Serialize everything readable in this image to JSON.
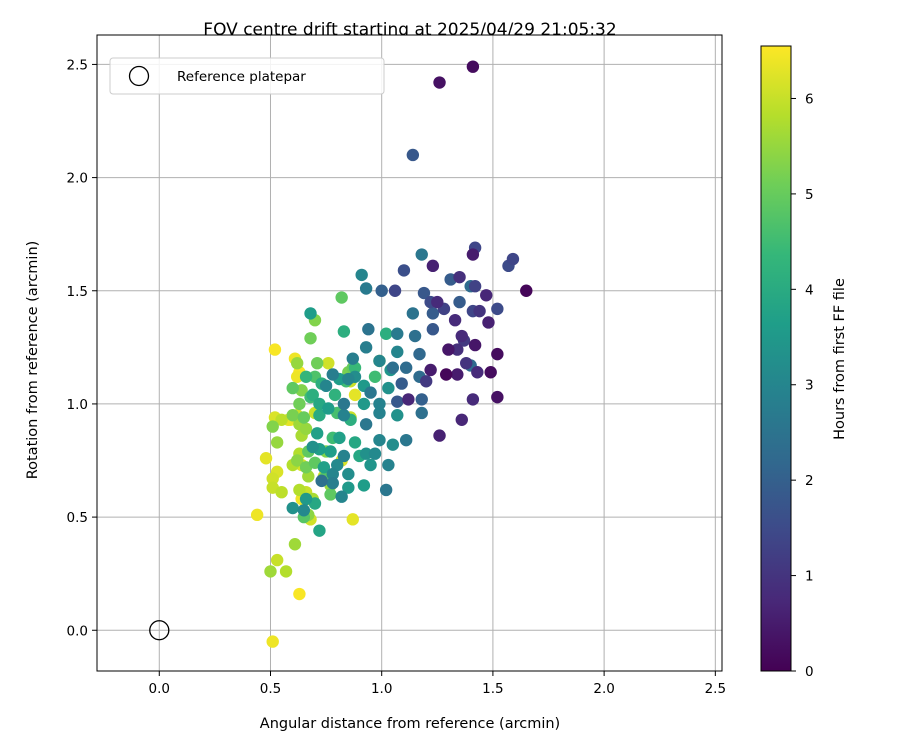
{
  "chart_data": {
    "type": "scatter",
    "title": "FOV centre drift starting at 2025/04/29 21:05:32",
    "xlabel": "Angular distance from reference (arcmin)",
    "ylabel": "Rotation from reference (arcmin)",
    "xlim": [
      -0.28,
      2.53
    ],
    "ylim": [
      -0.18,
      2.63
    ],
    "x_ticks": [
      "0.0",
      "0.5",
      "1.0",
      "1.5",
      "2.0",
      "2.5"
    ],
    "y_ticks": [
      "0.0",
      "0.5",
      "1.0",
      "1.5",
      "2.0",
      "2.5"
    ],
    "grid": true,
    "legend": {
      "placement": "top-left",
      "entries": [
        "Reference platepar"
      ]
    },
    "colorbar": {
      "label": "Hours from first FF file",
      "range": [
        0,
        6.55
      ],
      "ticks": [
        "0",
        "1",
        "2",
        "3",
        "4",
        "5",
        "6"
      ],
      "colormap": [
        "#440154",
        "#482878",
        "#3e4989",
        "#31688e",
        "#26828e",
        "#1f9e89",
        "#35b779",
        "#6ece58",
        "#b5de2b",
        "#fde725"
      ]
    },
    "reference_point": {
      "x": 0.0,
      "y": 0.0
    },
    "series": [
      {
        "points": [
          [
            1.41,
            2.49,
            0.2
          ],
          [
            1.26,
            2.42,
            0.3
          ],
          [
            1.14,
            2.1,
            1.8
          ],
          [
            1.41,
            1.66,
            0.5
          ],
          [
            1.42,
            1.69,
            1.4
          ],
          [
            1.59,
            1.64,
            1.4
          ],
          [
            1.57,
            1.61,
            1.5
          ],
          [
            1.52,
            1.42,
            1.5
          ],
          [
            1.65,
            1.5,
            0.1
          ],
          [
            1.47,
            1.48,
            0.7
          ],
          [
            1.35,
            1.56,
            0.9
          ],
          [
            1.31,
            1.55,
            1.9
          ],
          [
            1.23,
            1.61,
            0.6
          ],
          [
            1.18,
            1.66,
            2.6
          ],
          [
            1.1,
            1.59,
            1.6
          ],
          [
            1.06,
            1.5,
            1.4
          ],
          [
            1.0,
            1.5,
            2.0
          ],
          [
            0.93,
            1.51,
            2.7
          ],
          [
            0.91,
            1.57,
            3.0
          ],
          [
            1.19,
            1.49,
            1.8
          ],
          [
            1.22,
            1.45,
            1.5
          ],
          [
            1.25,
            1.45,
            0.8
          ],
          [
            1.28,
            1.42,
            1.3
          ],
          [
            1.33,
            1.37,
            0.8
          ],
          [
            1.35,
            1.45,
            1.9
          ],
          [
            1.4,
            1.52,
            2.3
          ],
          [
            1.42,
            1.52,
            1.3
          ],
          [
            1.41,
            1.41,
            1.4
          ],
          [
            1.48,
            1.36,
            0.6
          ],
          [
            1.44,
            1.41,
            1.0
          ],
          [
            1.36,
            1.3,
            0.8
          ],
          [
            1.37,
            1.28,
            1.1
          ],
          [
            1.34,
            1.24,
            0.9
          ],
          [
            1.3,
            1.24,
            0.4
          ],
          [
            1.42,
            1.26,
            0.4
          ],
          [
            1.52,
            1.22,
            0.2
          ],
          [
            1.38,
            1.18,
            1.0
          ],
          [
            1.4,
            1.17,
            2.3
          ],
          [
            1.43,
            1.14,
            0.8
          ],
          [
            1.49,
            1.14,
            0.2
          ],
          [
            1.52,
            1.03,
            0.3
          ],
          [
            1.41,
            1.02,
            0.8
          ],
          [
            1.36,
            0.93,
            0.7
          ],
          [
            1.26,
            0.86,
            0.6
          ],
          [
            1.29,
            1.13,
            0.1
          ],
          [
            1.34,
            1.13,
            0.5
          ],
          [
            1.22,
            1.15,
            0.5
          ],
          [
            1.2,
            1.1,
            1.1
          ],
          [
            1.17,
            1.12,
            2.3
          ],
          [
            1.23,
            1.33,
            1.8
          ],
          [
            1.23,
            1.4,
            1.9
          ],
          [
            1.17,
            1.22,
            2.2
          ],
          [
            1.15,
            1.3,
            2.4
          ],
          [
            1.14,
            1.4,
            2.5
          ],
          [
            1.07,
            1.31,
            2.7
          ],
          [
            1.02,
            1.31,
            4.1
          ],
          [
            1.07,
            1.23,
            3.0
          ],
          [
            1.05,
            1.16,
            2.4
          ],
          [
            1.11,
            1.16,
            2.3
          ],
          [
            1.09,
            1.09,
            1.9
          ],
          [
            1.18,
            1.02,
            2.0
          ],
          [
            1.18,
            0.96,
            2.4
          ],
          [
            1.12,
            1.02,
            0.7
          ],
          [
            1.07,
            1.01,
            1.8
          ],
          [
            1.03,
            1.07,
            3.3
          ],
          [
            1.04,
            1.15,
            3.4
          ],
          [
            0.99,
            1.19,
            3.0
          ],
          [
            0.97,
            1.12,
            4.5
          ],
          [
            0.93,
            1.25,
            2.8
          ],
          [
            0.94,
            1.33,
            2.5
          ],
          [
            0.87,
            1.2,
            2.8
          ],
          [
            0.88,
            1.12,
            3.2
          ],
          [
            0.92,
            1.08,
            3.5
          ],
          [
            0.95,
            1.05,
            2.6
          ],
          [
            0.99,
            1.0,
            2.9
          ],
          [
            0.99,
            0.96,
            2.9
          ],
          [
            0.99,
            0.84,
            3.0
          ],
          [
            1.05,
            0.82,
            3.2
          ],
          [
            1.11,
            0.84,
            2.6
          ],
          [
            1.07,
            0.95,
            3.3
          ],
          [
            1.03,
            0.73,
            2.9
          ],
          [
            1.02,
            0.62,
            2.6
          ],
          [
            0.97,
            0.78,
            3.1
          ],
          [
            0.95,
            0.73,
            3.4
          ],
          [
            0.93,
            0.78,
            3.3
          ],
          [
            0.9,
            0.77,
            3.9
          ],
          [
            0.92,
            0.64,
            3.6
          ],
          [
            0.93,
            0.91,
            2.6
          ],
          [
            0.92,
            1.0,
            3.5
          ],
          [
            0.86,
            0.93,
            4.1
          ],
          [
            0.88,
            0.83,
            3.9
          ],
          [
            0.83,
            0.77,
            2.9
          ],
          [
            0.8,
            0.73,
            3.1
          ],
          [
            0.85,
            0.69,
            3.2
          ],
          [
            0.85,
            0.63,
            3.5
          ],
          [
            0.82,
            0.59,
            3.0
          ],
          [
            0.78,
            0.65,
            2.8
          ],
          [
            0.73,
            0.66,
            2.4
          ],
          [
            0.78,
            0.69,
            3.0
          ],
          [
            0.74,
            0.72,
            3.7
          ],
          [
            0.77,
            0.79,
            3.6
          ],
          [
            0.81,
            0.85,
            3.7
          ],
          [
            0.83,
            0.95,
            2.9
          ],
          [
            0.83,
            1.0,
            2.6
          ],
          [
            0.85,
            1.11,
            3.0
          ],
          [
            0.81,
            1.11,
            3.6
          ],
          [
            0.78,
            1.13,
            2.8
          ],
          [
            0.75,
            1.08,
            3.0
          ],
          [
            0.79,
            1.04,
            4.2
          ],
          [
            0.76,
            0.98,
            3.6
          ],
          [
            0.72,
            0.95,
            4.0
          ],
          [
            0.72,
            1.0,
            3.9
          ],
          [
            0.69,
            1.04,
            4.1
          ],
          [
            0.73,
            1.09,
            4.1
          ],
          [
            0.71,
            0.87,
            3.7
          ],
          [
            0.69,
            0.81,
            3.3
          ],
          [
            0.72,
            0.8,
            3.6
          ],
          [
            0.74,
            0.67,
            4.8
          ],
          [
            0.7,
            0.56,
            3.9
          ],
          [
            0.66,
            0.58,
            3.5
          ],
          [
            0.65,
            0.53,
            3.1
          ],
          [
            0.6,
            0.54,
            3.3
          ],
          [
            0.65,
            0.5,
            4.8
          ],
          [
            0.72,
            0.44,
            3.8
          ],
          [
            0.77,
            0.6,
            4.9
          ],
          [
            0.78,
            0.85,
            4.5
          ],
          [
            0.8,
            0.96,
            4.6
          ],
          [
            0.85,
            1.14,
            5.2
          ],
          [
            0.84,
            1.1,
            4.5
          ],
          [
            0.88,
            1.16,
            4.4
          ],
          [
            0.87,
            1.16,
            5.0
          ],
          [
            0.83,
            1.32,
            4.1
          ],
          [
            0.82,
            1.47,
            4.9
          ],
          [
            0.7,
            1.37,
            5.3
          ],
          [
            0.68,
            1.4,
            3.6
          ],
          [
            0.68,
            1.29,
            5.1
          ],
          [
            0.71,
            1.18,
            5.1
          ],
          [
            0.62,
            1.18,
            5.5
          ],
          [
            0.6,
            1.07,
            4.9
          ],
          [
            0.66,
            1.12,
            4.3
          ],
          [
            0.7,
            1.12,
            4.7
          ],
          [
            0.64,
            1.06,
            5.3
          ],
          [
            0.68,
            1.03,
            4.5
          ],
          [
            0.63,
            1.0,
            5.1
          ],
          [
            0.65,
            0.94,
            5.0
          ],
          [
            0.6,
            0.95,
            5.2
          ],
          [
            0.63,
            0.91,
            5.6
          ],
          [
            0.66,
            0.89,
            5.5
          ],
          [
            0.64,
            0.86,
            5.7
          ],
          [
            0.63,
            0.78,
            5.8
          ],
          [
            0.67,
            0.79,
            4.9
          ],
          [
            0.7,
            0.74,
            4.9
          ],
          [
            0.66,
            0.72,
            5.1
          ],
          [
            0.62,
            0.75,
            5.4
          ],
          [
            0.6,
            0.73,
            5.8
          ],
          [
            0.64,
            0.73,
            6.2
          ],
          [
            0.67,
            0.68,
            5.6
          ],
          [
            0.63,
            0.62,
            5.8
          ],
          [
            0.66,
            0.61,
            6.0
          ],
          [
            0.64,
            0.58,
            6.4
          ],
          [
            0.67,
            0.58,
            6.3
          ],
          [
            0.69,
            0.58,
            5.7
          ],
          [
            0.67,
            0.51,
            5.4
          ],
          [
            0.68,
            0.49,
            6.1
          ],
          [
            0.61,
            0.38,
            5.6
          ],
          [
            0.57,
            0.26,
            5.8
          ],
          [
            0.53,
            0.31,
            6.0
          ],
          [
            0.5,
            0.26,
            5.6
          ],
          [
            0.63,
            0.16,
            6.5
          ],
          [
            0.51,
            -0.05,
            6.4
          ],
          [
            0.44,
            0.51,
            6.4
          ],
          [
            0.51,
            0.63,
            6.0
          ],
          [
            0.51,
            0.67,
            6.1
          ],
          [
            0.53,
            0.7,
            6.2
          ],
          [
            0.55,
            0.61,
            5.9
          ],
          [
            0.48,
            0.76,
            6.3
          ],
          [
            0.53,
            0.83,
            5.5
          ],
          [
            0.51,
            0.9,
            5.3
          ],
          [
            0.55,
            0.93,
            5.9
          ],
          [
            0.52,
            0.94,
            6.2
          ],
          [
            0.59,
            0.93,
            6.5
          ],
          [
            0.58,
            0.93,
            6.3
          ],
          [
            0.62,
            0.95,
            6.0
          ],
          [
            0.62,
            1.12,
            6.4
          ],
          [
            0.61,
            1.2,
            6.4
          ],
          [
            0.63,
            1.14,
            6.5
          ],
          [
            0.52,
            1.24,
            6.5
          ],
          [
            0.76,
            1.18,
            6.1
          ],
          [
            0.87,
            1.15,
            5.7
          ],
          [
            0.88,
            1.04,
            6.3
          ],
          [
            0.86,
            0.94,
            6.0
          ],
          [
            0.87,
            0.49,
            6.3
          ],
          [
            0.74,
            0.68,
            6.1
          ],
          [
            0.82,
            0.75,
            6.2
          ],
          [
            0.77,
            0.64,
            5.5
          ],
          [
            0.86,
            1.1,
            6.0
          ],
          [
            0.99,
            1.19,
            5.5
          ],
          [
            0.75,
            0.79,
            5.3
          ],
          [
            0.7,
            0.96,
            6.0
          ]
        ]
      }
    ]
  }
}
